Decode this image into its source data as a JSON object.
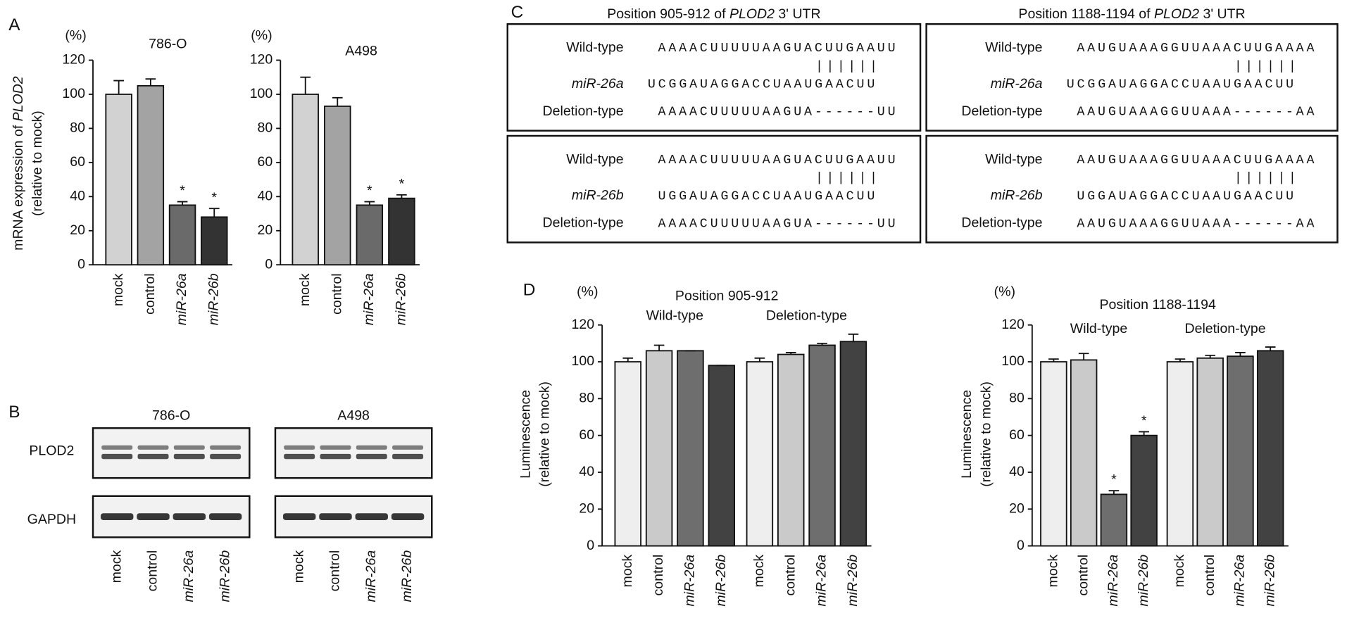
{
  "panel_labels": [
    "A",
    "B",
    "C",
    "D"
  ],
  "chart_data": [
    {
      "type": "bar",
      "title": "786-O",
      "unit_label": "(%)",
      "ylabel": {
        "pre": "mRNA expression of ",
        "gene": "PLOD2",
        "line2": "(relative to mock)"
      },
      "categories": [
        "mock",
        "control",
        "miR-26a",
        "miR-26b"
      ],
      "italic": [
        false,
        false,
        true,
        true
      ],
      "values": [
        100,
        105,
        35,
        28
      ],
      "errors": [
        8,
        4,
        2,
        5
      ],
      "significance": [
        null,
        null,
        "*",
        "*"
      ],
      "colors": [
        "#d2d2d2",
        "#a3a3a3",
        "#6a6a6a",
        "#333333"
      ],
      "ylim": [
        0,
        120
      ],
      "yticks": [
        0,
        20,
        40,
        60,
        80,
        100,
        120
      ]
    },
    {
      "type": "bar",
      "title": "A498",
      "unit_label": "(%)",
      "categories": [
        "mock",
        "control",
        "miR-26a",
        "miR-26b"
      ],
      "italic": [
        false,
        false,
        true,
        true
      ],
      "values": [
        100,
        93,
        35,
        39
      ],
      "errors": [
        10,
        5,
        2,
        2
      ],
      "significance": [
        null,
        null,
        "*",
        "*"
      ],
      "colors": [
        "#d2d2d2",
        "#a3a3a3",
        "#6a6a6a",
        "#333333"
      ],
      "ylim": [
        0,
        120
      ],
      "yticks": [
        0,
        20,
        40,
        60,
        80,
        100,
        120
      ]
    },
    {
      "type": "bar",
      "title": "Position 905-912",
      "unit_label": "(%)",
      "groups": [
        "Wild-type",
        "Deletion-type"
      ],
      "ylabel": {
        "line1": "Luminescence",
        "line2": "(relative to mock)"
      },
      "categories": [
        "mock",
        "control",
        "miR-26a",
        "miR-26b",
        "mock",
        "control",
        "miR-26a",
        "miR-26b"
      ],
      "italic": [
        false,
        false,
        true,
        true,
        false,
        false,
        true,
        true
      ],
      "values": [
        100,
        106,
        106,
        98,
        100,
        104,
        109,
        111
      ],
      "errors": [
        2,
        3,
        0,
        0,
        2,
        1,
        1,
        4
      ],
      "colors": [
        "#eeeeee",
        "#cacaca",
        "#6e6e6e",
        "#424242",
        "#eeeeee",
        "#cacaca",
        "#6e6e6e",
        "#424242"
      ],
      "ylim": [
        0,
        120
      ],
      "yticks": [
        0,
        20,
        40,
        60,
        80,
        100,
        120
      ]
    },
    {
      "type": "bar",
      "title": "Position 1188-1194",
      "unit_label": "(%)",
      "groups": [
        "Wild-type",
        "Deletion-type"
      ],
      "ylabel": {
        "line1": "Luminescence",
        "line2": "(relative to mock)"
      },
      "categories": [
        "mock",
        "control",
        "miR-26a",
        "miR-26b",
        "mock",
        "control",
        "miR-26a",
        "miR-26b"
      ],
      "italic": [
        false,
        false,
        true,
        true,
        false,
        false,
        true,
        true
      ],
      "values": [
        100,
        101,
        28,
        60,
        100,
        102,
        103,
        106
      ],
      "errors": [
        1.5,
        3.5,
        2,
        2,
        1.5,
        1.5,
        2,
        2
      ],
      "significance": [
        null,
        null,
        "*",
        "*",
        null,
        null,
        null,
        null
      ],
      "colors": [
        "#eeeeee",
        "#cacaca",
        "#6e6e6e",
        "#424242",
        "#eeeeee",
        "#cacaca",
        "#6e6e6e",
        "#424242"
      ],
      "ylim": [
        0,
        120
      ],
      "yticks": [
        0,
        20,
        40,
        60,
        80,
        100,
        120
      ]
    }
  ],
  "blot": {
    "cell_lines": [
      "786-O",
      "A498"
    ],
    "proteins": [
      "PLOD2",
      "GAPDH"
    ],
    "lanes": [
      "mock",
      "control",
      "miR-26a",
      "miR-26b"
    ],
    "italic": [
      false,
      false,
      true,
      true
    ]
  },
  "c_headers": [
    {
      "pre": "Position 905-912 of ",
      "gene": "PLOD2",
      "post": " 3' UTR"
    },
    {
      "pre": "Position 1188-1194 of ",
      "gene": "PLOD2",
      "post": " 3' UTR"
    }
  ],
  "alignments": [
    {
      "match": "||||||",
      "rows": [
        {
          "label": "Wild-type",
          "seq": "AAAACUUUUUAAGUACUUGAAUU"
        },
        {
          "label": "miR-26a",
          "seq": "UCGGAUAGGACCUAAUGAACUU",
          "italic": true
        },
        {
          "label": "Deletion-type",
          "seq": "AAAACUUUUUAAGUA------UU"
        }
      ]
    },
    {
      "match": "||||||",
      "rows": [
        {
          "label": "Wild-type",
          "seq": "AAUGUAAAGGUUAAACUUGAAAA"
        },
        {
          "label": "miR-26a",
          "seq": "UCGGAUAGGACCUAAUGAACUU",
          "italic": true
        },
        {
          "label": "Deletion-type",
          "seq": "AAUGUAAAGGUUAAA------AA"
        }
      ]
    },
    {
      "match": "||||||",
      "rows": [
        {
          "label": "Wild-type",
          "seq": "AAAACUUUUUAAGUACUUGAAUU"
        },
        {
          "label": "miR-26b",
          "seq": "UGGAUAGGACCUAAUGAACUU",
          "italic": true
        },
        {
          "label": "Deletion-type",
          "seq": "AAAACUUUUUAAGUA------UU"
        }
      ]
    },
    {
      "match": "||||||",
      "rows": [
        {
          "label": "Wild-type",
          "seq": "AAUGUAAAGGUUAAACUUGAAAA"
        },
        {
          "label": "miR-26b",
          "seq": "UGGAUAGGACCUAAUGAACUU",
          "italic": true
        },
        {
          "label": "Deletion-type",
          "seq": "AAUGUAAAGGUUAAA------AA"
        }
      ]
    }
  ]
}
